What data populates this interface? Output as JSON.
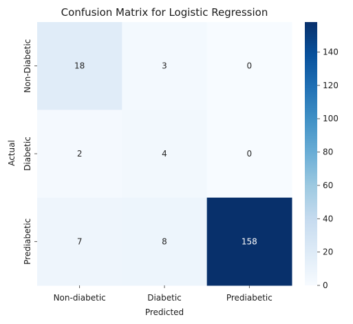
{
  "chart_data": {
    "type": "heatmap",
    "title": "Confusion Matrix for Logistic Regression",
    "xlabel": "Predicted",
    "ylabel": "Actual",
    "x_categories": [
      "Non-diabetic",
      "Diabetic",
      "Prediabetic"
    ],
    "y_categories": [
      "Non-Diabetic",
      "Diabetic",
      "Prediabetic"
    ],
    "values": [
      [
        18,
        3,
        0
      ],
      [
        2,
        4,
        0
      ],
      [
        7,
        8,
        158
      ]
    ],
    "colormap": "Blues",
    "colors": {
      "low": "#f7fbff",
      "high": "#08306b"
    },
    "colorbar": {
      "range": [
        0,
        158
      ],
      "ticks": [
        0,
        20,
        40,
        60,
        80,
        100,
        120,
        140
      ]
    }
  }
}
